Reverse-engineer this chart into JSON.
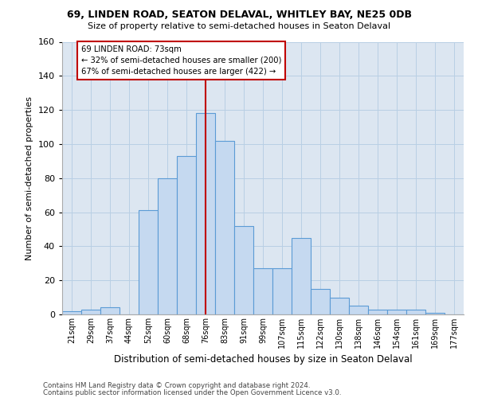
{
  "title1": "69, LINDEN ROAD, SEATON DELAVAL, WHITLEY BAY, NE25 0DB",
  "title2": "Size of property relative to semi-detached houses in Seaton Delaval",
  "xlabel": "Distribution of semi-detached houses by size in Seaton Delaval",
  "ylabel": "Number of semi-detached properties",
  "footer1": "Contains HM Land Registry data © Crown copyright and database right 2024.",
  "footer2": "Contains public sector information licensed under the Open Government Licence v3.0.",
  "bar_labels": [
    "21sqm",
    "29sqm",
    "37sqm",
    "44sqm",
    "52sqm",
    "60sqm",
    "68sqm",
    "76sqm",
    "83sqm",
    "91sqm",
    "99sqm",
    "107sqm",
    "115sqm",
    "122sqm",
    "130sqm",
    "138sqm",
    "146sqm",
    "154sqm",
    "161sqm",
    "169sqm",
    "177sqm"
  ],
  "bar_values": [
    2,
    3,
    4,
    0,
    61,
    80,
    93,
    118,
    102,
    52,
    27,
    27,
    45,
    15,
    10,
    5,
    3,
    3,
    3,
    1,
    0
  ],
  "bar_color": "#c5d9f0",
  "bar_edge_color": "#5b9bd5",
  "grid_color": "#b8cfe4",
  "bg_color": "#dce6f1",
  "annotation_line1": "69 LINDEN ROAD: 73sqm",
  "annotation_line2": "← 32% of semi-detached houses are smaller (200)",
  "annotation_line3": "67% of semi-detached houses are larger (422) →",
  "vline_x_index": 7,
  "vline_color": "#c00000",
  "annotation_box_color": "#c00000",
  "ylim": [
    0,
    160
  ],
  "yticks": [
    0,
    20,
    40,
    60,
    80,
    100,
    120,
    140,
    160
  ]
}
